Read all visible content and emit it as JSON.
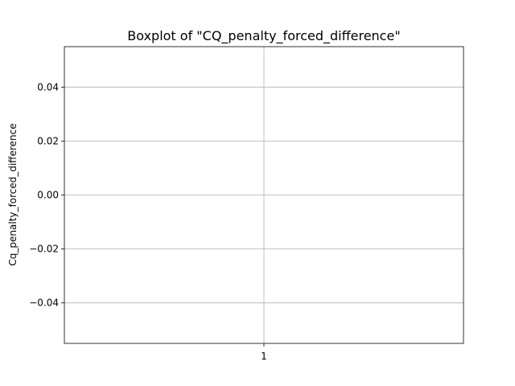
{
  "chart_data": {
    "type": "box",
    "title": "Boxplot of \"CQ_penalty_forced_difference\"",
    "xlabel": "",
    "ylabel": "Cq_penalty_forced_difference",
    "categories": [
      "1"
    ],
    "series": [
      {
        "values": []
      }
    ],
    "ylim": [
      -0.055,
      0.055
    ],
    "yticks": [
      0.04,
      0.02,
      0.0,
      -0.02,
      -0.04
    ],
    "ytick_labels": [
      "0.04",
      "0.02",
      "0.00",
      "−0.02",
      "−0.04"
    ],
    "xticks": [
      "1"
    ],
    "grid": true
  }
}
